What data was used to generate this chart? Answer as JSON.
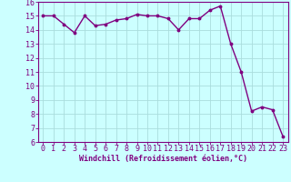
{
  "x": [
    0,
    1,
    2,
    3,
    4,
    5,
    6,
    7,
    8,
    9,
    10,
    11,
    12,
    13,
    14,
    15,
    16,
    17,
    18,
    19,
    20,
    21,
    22,
    23
  ],
  "y": [
    15.0,
    15.0,
    14.4,
    13.8,
    15.0,
    14.3,
    14.4,
    14.7,
    14.8,
    15.1,
    15.0,
    15.0,
    14.8,
    14.0,
    14.8,
    14.8,
    15.4,
    15.7,
    13.0,
    11.0,
    8.2,
    8.5,
    8.3,
    6.4
  ],
  "line_color": "#800080",
  "marker": "o",
  "marker_size": 1.8,
  "line_width": 1.0,
  "bg_color": "#ccffff",
  "grid_color": "#aadddd",
  "xlabel": "Windchill (Refroidissement éolien,°C)",
  "xlabel_color": "#800080",
  "xlabel_fontsize": 6.0,
  "tick_color": "#800080",
  "tick_fontsize": 6.0,
  "xlim": [
    -0.5,
    23.5
  ],
  "ylim": [
    6,
    16
  ],
  "yticks": [
    6,
    7,
    8,
    9,
    10,
    11,
    12,
    13,
    14,
    15,
    16
  ],
  "xticks": [
    0,
    1,
    2,
    3,
    4,
    5,
    6,
    7,
    8,
    9,
    10,
    11,
    12,
    13,
    14,
    15,
    16,
    17,
    18,
    19,
    20,
    21,
    22,
    23
  ]
}
